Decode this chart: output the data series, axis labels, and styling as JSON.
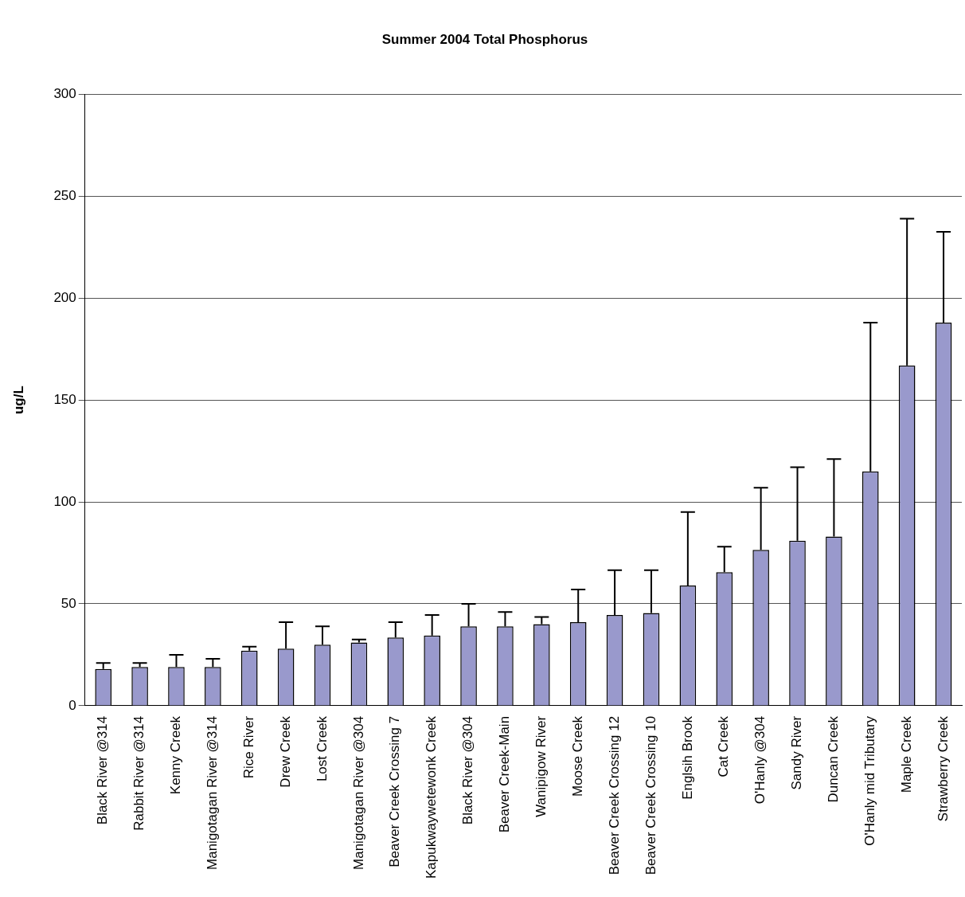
{
  "chart_data": {
    "type": "bar",
    "title": "Summer 2004 Total Phosphorus",
    "ylabel": "ug/L",
    "categories": [
      "Black River @314",
      "Rabbit River @314",
      "Kenny Creek",
      "Manigotagan River @314",
      "Rice River",
      "Drew Creek",
      "Lost Creek",
      "Manigotagan River @304",
      "Beaver Creek Crossing 7",
      "Kapukwaywetewonk Creek",
      "Black River @304",
      "Beaver Creek-Main",
      "Wanipigow River",
      "Moose Creek",
      "Beaver Creek Crossing 12",
      "Beaver Creek Crossing 10",
      "Englsih Brook",
      "Cat Creek",
      "O'Hanly @304",
      "Sandy River",
      "Duncan Creek",
      "O'Hanly mid Tributary",
      "Maple Creek",
      "Strawberry Creek"
    ],
    "values": [
      18,
      19,
      19,
      19,
      27,
      28,
      30,
      31,
      33.5,
      34.5,
      39,
      39,
      40,
      41,
      44.5,
      45.5,
      59,
      65.5,
      76.5,
      81,
      83,
      115,
      167,
      188
    ],
    "errors": [
      [
        18,
        21
      ],
      [
        19,
        21
      ],
      [
        19,
        25
      ],
      [
        19,
        23
      ],
      [
        27,
        29
      ],
      [
        28,
        41
      ],
      [
        30,
        39
      ],
      [
        31,
        32.5
      ],
      [
        33.5,
        41
      ],
      [
        34.5,
        44.5
      ],
      [
        39,
        50
      ],
      [
        39,
        46
      ],
      [
        40,
        43.5
      ],
      [
        41,
        57
      ],
      [
        44.5,
        66.5
      ],
      [
        45.5,
        66.5
      ],
      [
        59,
        95
      ],
      [
        65.5,
        78
      ],
      [
        76.5,
        107
      ],
      [
        81,
        117
      ],
      [
        83,
        121
      ],
      [
        115,
        188
      ],
      [
        167,
        239
      ],
      [
        188,
        232.5
      ]
    ],
    "color": "#9999cc",
    "ylim": [
      0,
      300
    ],
    "yticks": [
      0,
      50,
      100,
      150,
      200,
      250,
      300
    ],
    "grid": "y",
    "legend": false
  }
}
